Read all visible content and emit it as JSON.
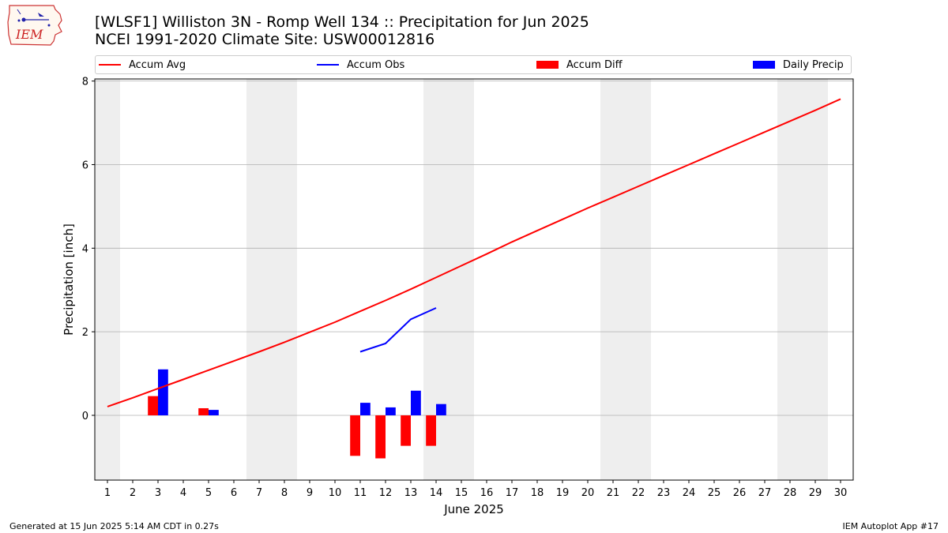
{
  "header": {
    "title_line1": "[WLSF1] Williston 3N - Romp Well 134 :: Precipitation for Jun 2025",
    "title_line2": "NCEI 1991-2020 Climate Site: USW00012816",
    "logo_text": "IEM"
  },
  "footer": {
    "left": "Generated at 15 Jun 2025 5:14 AM CDT in 0.27s",
    "right": "IEM Autoplot App #17"
  },
  "colors": {
    "accum_avg": "#ff0000",
    "accum_obs": "#0000ff",
    "accum_diff": "#ff0000",
    "daily_precip": "#0000ff",
    "weekend_shade": "#eeeeee",
    "grid": "#b0b0b0"
  },
  "chart_data": {
    "type": "bar",
    "xlabel": "June 2025",
    "ylabel": "Precipitation [inch]",
    "xlim": [
      0.5,
      30.5
    ],
    "ylim": [
      -1.55,
      8.05
    ],
    "x_ticks": [
      1,
      2,
      3,
      4,
      5,
      6,
      7,
      8,
      9,
      10,
      11,
      12,
      13,
      14,
      15,
      16,
      17,
      18,
      19,
      20,
      21,
      22,
      23,
      24,
      25,
      26,
      27,
      28,
      29,
      30
    ],
    "y_ticks": [
      0,
      2,
      4,
      6,
      8
    ],
    "grid": "y",
    "legend_position": "top",
    "weekend_shading": [
      [
        0.5,
        1.5
      ],
      [
        6.5,
        8.5
      ],
      [
        13.5,
        15.5
      ],
      [
        20.5,
        22.5
      ],
      [
        27.5,
        29.5
      ]
    ],
    "series": [
      {
        "name": "Accum Avg",
        "type": "line",
        "x": [
          1,
          2,
          3,
          4,
          5,
          6,
          7,
          8,
          9,
          10,
          11,
          12,
          13,
          14,
          15,
          16,
          17,
          18,
          19,
          20,
          21,
          22,
          23,
          24,
          25,
          26,
          27,
          28,
          29,
          30
        ],
        "values": [
          0.21,
          0.42,
          0.64,
          0.86,
          1.08,
          1.3,
          1.52,
          1.75,
          1.99,
          2.23,
          2.49,
          2.75,
          3.02,
          3.3,
          3.58,
          3.86,
          4.15,
          4.42,
          4.69,
          4.96,
          5.22,
          5.48,
          5.74,
          6.0,
          6.26,
          6.52,
          6.78,
          7.04,
          7.3,
          7.57
        ]
      },
      {
        "name": "Accum Obs",
        "type": "line",
        "x": [
          11,
          12,
          13,
          14
        ],
        "values": [
          1.52,
          1.72,
          2.3,
          2.57
        ]
      },
      {
        "name": "Accum Diff",
        "type": "bar",
        "x": [
          3,
          5,
          11,
          12,
          13,
          14
        ],
        "values": [
          0.46,
          0.17,
          -0.97,
          -1.03,
          -0.73,
          -0.73
        ]
      },
      {
        "name": "Daily Precip",
        "type": "bar",
        "x": [
          3,
          5,
          11,
          12,
          13,
          14
        ],
        "values": [
          1.1,
          0.13,
          0.3,
          0.19,
          0.59,
          0.27
        ]
      }
    ]
  }
}
